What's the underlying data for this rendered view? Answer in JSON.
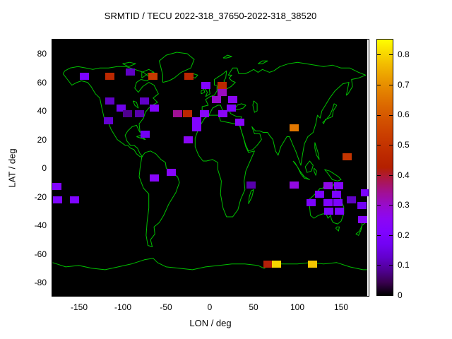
{
  "title": "SRMTID / TECU 2022-318_37650-2022-318_38520",
  "axes": {
    "x_label": "LON / deg",
    "y_label": "LAT / deg",
    "x_tick_labels": [
      "-150",
      "-100",
      "-50",
      "0",
      "50",
      "100",
      "150"
    ],
    "y_tick_labels": [
      "80",
      "60",
      "40",
      "20",
      "0",
      "-20",
      "-40",
      "-60",
      "-80"
    ],
    "colorbar_tick_labels": [
      "0",
      "0.1",
      "0.2",
      "0.3",
      "0.4",
      "0.5",
      "0.6",
      "0.7",
      "0.8"
    ]
  },
  "chart_data": {
    "type": "heatmap",
    "title": "SRMTID / TECU 2022-318_37650-2022-318_38520",
    "xlabel": "LON / deg",
    "ylabel": "LAT / deg",
    "xlim": [
      -180,
      180
    ],
    "ylim": [
      -90,
      90
    ],
    "x_ticks": [
      -150,
      -100,
      -50,
      0,
      50,
      100,
      150
    ],
    "y_ticks": [
      80,
      60,
      40,
      20,
      0,
      -20,
      -40,
      -60,
      -80
    ],
    "grid": false,
    "background_color": "#000000",
    "coastline_color": "#00c000",
    "colorbar": {
      "min": 0,
      "max": 0.85,
      "ticks": [
        0,
        0.1,
        0.2,
        0.3,
        0.4,
        0.5,
        0.6,
        0.7,
        0.8
      ],
      "palette": "gnuplot pm3d (black-purple-violet-red-orange-yellow)",
      "position": "right"
    },
    "cell_size_deg": {
      "lon": 10,
      "lat": 5
    },
    "point_format": [
      "lon_deg",
      "lat_deg",
      "tecu"
    ],
    "points": [
      [
        -144,
        64,
        0.2
      ],
      [
        -115,
        64,
        0.46
      ],
      [
        -91,
        67,
        0.12
      ],
      [
        -65,
        64,
        0.52
      ],
      [
        -24,
        64,
        0.45
      ],
      [
        -5,
        58,
        0.22
      ],
      [
        14,
        58,
        0.46
      ],
      [
        14,
        53,
        0.31
      ],
      [
        7,
        48,
        0.3
      ],
      [
        26,
        48,
        0.25
      ],
      [
        24,
        42,
        0.22
      ],
      [
        -115,
        47,
        0.12
      ],
      [
        -102,
        42,
        0.16
      ],
      [
        -94,
        38,
        0.08
      ],
      [
        -81,
        38,
        0.1
      ],
      [
        -75,
        47,
        0.12
      ],
      [
        -64,
        42,
        0.22
      ],
      [
        -116,
        33,
        0.13
      ],
      [
        -74,
        24,
        0.17
      ],
      [
        -37,
        38,
        0.34
      ],
      [
        -26,
        38,
        0.45
      ],
      [
        -6,
        38,
        0.24
      ],
      [
        15,
        38,
        0.25
      ],
      [
        -15,
        33,
        0.22
      ],
      [
        -15,
        28,
        0.22
      ],
      [
        34,
        32,
        0.24
      ],
      [
        -25,
        20,
        0.25
      ],
      [
        96,
        28,
        0.66
      ],
      [
        157,
        8,
        0.5
      ],
      [
        -64,
        -7,
        0.24
      ],
      [
        -44,
        -3,
        0.24
      ],
      [
        -175,
        -13,
        0.22
      ],
      [
        -174,
        -22,
        0.21
      ],
      [
        -155,
        -22,
        0.21
      ],
      [
        47,
        -12,
        0.1
      ],
      [
        96,
        -12,
        0.28
      ],
      [
        135,
        -12.5,
        0.27
      ],
      [
        147,
        -12.5,
        0.23
      ],
      [
        125,
        -18,
        0.2
      ],
      [
        145,
        -18,
        0.2
      ],
      [
        116,
        -24,
        0.2
      ],
      [
        135,
        -24,
        0.21
      ],
      [
        146,
        -24,
        0.2
      ],
      [
        136,
        -30,
        0.2
      ],
      [
        148,
        -30,
        0.2
      ],
      [
        162,
        -22,
        0.12
      ],
      [
        174,
        -26,
        0.17
      ],
      [
        178,
        -17,
        0.2
      ],
      [
        175,
        -36,
        0.24
      ],
      [
        66,
        -67,
        0.42
      ],
      [
        76,
        -67,
        0.8
      ],
      [
        117,
        -67,
        0.78
      ]
    ]
  }
}
